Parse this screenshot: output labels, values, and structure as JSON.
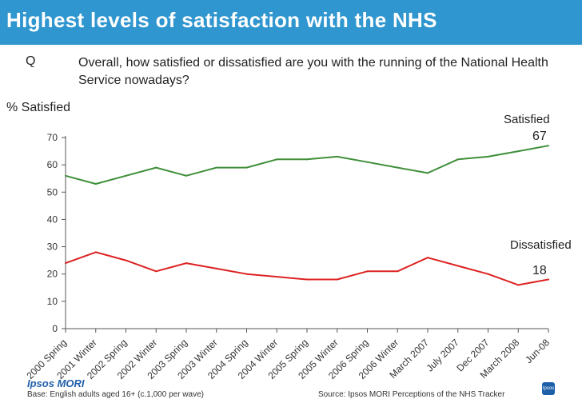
{
  "header": {
    "title": "Highest levels of satisfaction with the NHS"
  },
  "question": {
    "label": "Q",
    "text": "Overall, how satisfied or dissatisfied are you with the running of the National Health Service nowadays?"
  },
  "chart_data": {
    "type": "line",
    "title": "Highest levels of satisfaction with the NHS",
    "ylabel": "% Satisfied",
    "xlabel": "",
    "ylim": [
      0,
      70
    ],
    "yticks": [
      0,
      10,
      20,
      30,
      40,
      50,
      60,
      70
    ],
    "grid": false,
    "categories": [
      "2000 Spring",
      "2001 Winter",
      "2002 Spring",
      "2002 Winter",
      "2003 Spring",
      "2003 Winter",
      "2004 Spring",
      "2004 Winter",
      "2005 Spring",
      "2005 Winter",
      "2006 Spring",
      "2006 Winter",
      "March 2007",
      "July 2007",
      "Dec 2007",
      "March 2008",
      "Jun-08"
    ],
    "series": [
      {
        "name": "Satisfied",
        "color": "#3f8f3a",
        "values": [
          56,
          53,
          56,
          59,
          56,
          59,
          59,
          62,
          62,
          63,
          61,
          59,
          57,
          62,
          63,
          65,
          67
        ],
        "end_label": "67"
      },
      {
        "name": "Dissatisfied",
        "color": "#dd2222",
        "values": [
          24,
          28,
          25,
          21,
          24,
          22,
          20,
          19,
          18,
          18,
          21,
          21,
          26,
          23,
          20,
          16,
          18
        ],
        "end_label": "18"
      }
    ]
  },
  "footer": {
    "base": "Base: English adults aged 16+ (c.1,000 per wave)",
    "source": "Source: Ipsos MORI Perceptions of the NHS Tracker",
    "brand": "Ipsos MORI",
    "logo_text": "Ipsos"
  }
}
